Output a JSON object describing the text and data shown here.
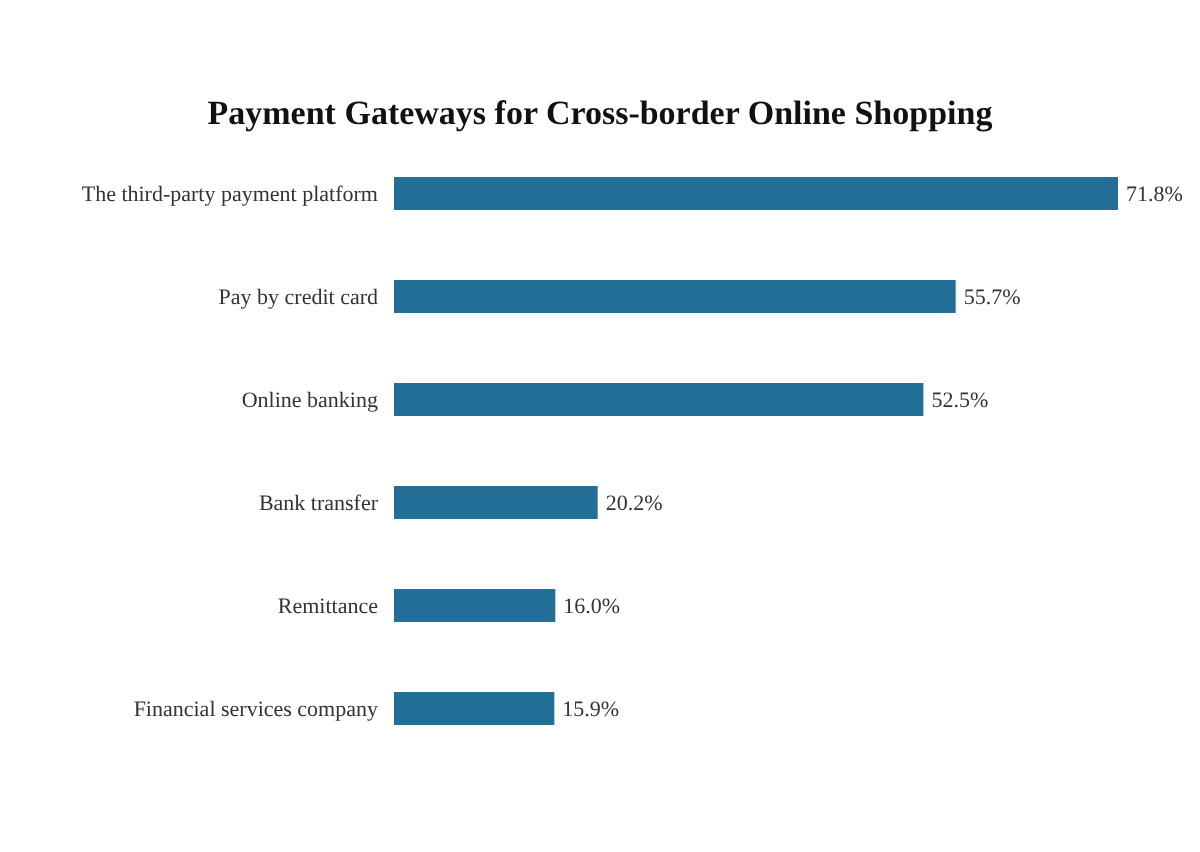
{
  "chart_data": {
    "type": "bar",
    "orientation": "horizontal",
    "title": "Payment Gateways for Cross-border Online Shopping",
    "categories": [
      "The third-party payment platform",
      "Pay by credit card",
      "Online banking",
      "Bank transfer",
      "Remittance",
      "Financial services company"
    ],
    "values": [
      71.8,
      55.7,
      52.5,
      20.2,
      16.0,
      15.9
    ],
    "value_labels": [
      "71.8%",
      "55.7%",
      "52.5%",
      "20.2%",
      "16.0%",
      "15.9%"
    ],
    "color": "#236e96"
  }
}
